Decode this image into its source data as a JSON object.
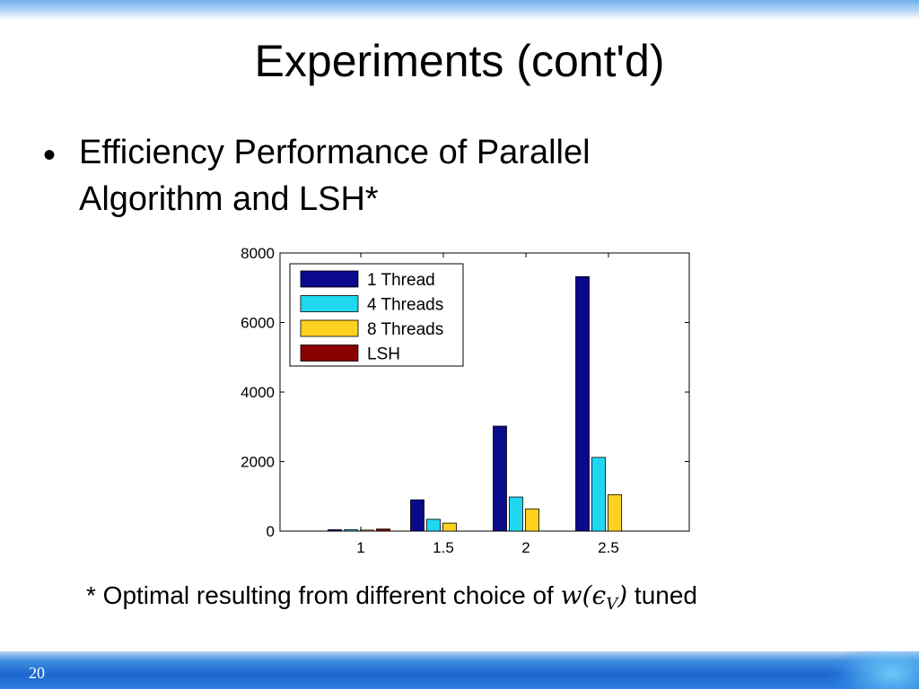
{
  "slide": {
    "title": "Experiments (cont'd)",
    "bullet_char": "•",
    "bullet_line1": "Efficiency Performance of Parallel",
    "bullet_line2": "Algorithm and LSH*",
    "footnote_prefix": "* Optimal resulting from different choice of ",
    "footnote_w": "w",
    "footnote_open": "(",
    "footnote_eps": "ϵ",
    "footnote_sub": "V",
    "footnote_close": ")",
    "footnote_suffix": " tuned",
    "page_number": "20"
  },
  "chart_data": {
    "type": "bar",
    "categories": [
      "1",
      "1.5",
      "2",
      "2.5"
    ],
    "ylim": [
      0,
      8000
    ],
    "yticks": [
      "0",
      "2000",
      "4000",
      "6000",
      "8000"
    ],
    "series": [
      {
        "name": "1 Thread",
        "color": "#0a0a8c",
        "values": [
          40,
          900,
          3020,
          7320
        ]
      },
      {
        "name": "4 Threads",
        "color": "#1fd8f0",
        "values": [
          40,
          340,
          980,
          2120
        ]
      },
      {
        "name": "8 Threads",
        "color": "#ffd21f",
        "values": [
          30,
          230,
          640,
          1050
        ]
      },
      {
        "name": "LSH",
        "color": "#8a0000",
        "values": [
          60,
          null,
          null,
          null
        ]
      }
    ],
    "legend_position": "top-left",
    "grid": false
  }
}
